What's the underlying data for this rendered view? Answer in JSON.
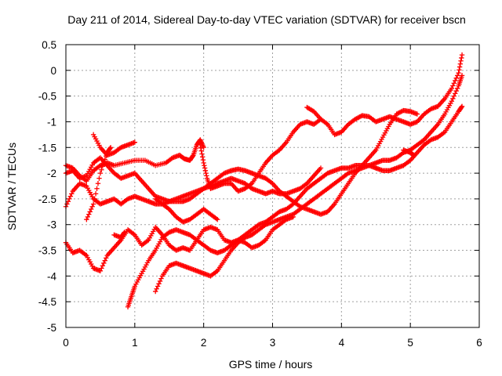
{
  "chart_data": {
    "type": "scatter",
    "title": "Day 211 of 2014, Sidereal Day-to-day VTEC variation (SDTVAR) for receiver bscn",
    "xlabel": "GPS time / hours",
    "ylabel": "SDTVAR / TECUs",
    "xlim": [
      0,
      6
    ],
    "ylim": [
      -5,
      0.5
    ],
    "xticks": [
      0,
      1,
      2,
      3,
      4,
      5,
      6
    ],
    "yticks": [
      -5,
      -4.5,
      -4,
      -3.5,
      -3,
      -2.5,
      -2,
      -1.5,
      -1,
      -0.5,
      0,
      0.5
    ],
    "grid": true,
    "marker": "+",
    "color": "#ff0000",
    "series": [
      {
        "x": [
          0.0,
          0.1,
          0.2,
          0.3,
          0.4,
          0.5,
          0.6,
          0.7,
          0.85,
          1.0,
          1.15,
          1.3,
          1.45,
          1.55,
          1.65,
          1.72,
          1.8,
          1.85,
          1.9,
          1.95,
          2.0
        ],
        "y": [
          -1.85,
          -1.9,
          -2.05,
          -2.15,
          -1.95,
          -1.85,
          -1.8,
          -1.85,
          -1.8,
          -1.75,
          -1.75,
          -1.85,
          -1.8,
          -1.7,
          -1.65,
          -1.72,
          -1.75,
          -1.65,
          -1.45,
          -1.35,
          -1.5
        ]
      },
      {
        "x": [
          1.95,
          2.0,
          2.05,
          2.1,
          2.2,
          2.3,
          2.4,
          2.5,
          2.6,
          2.7,
          2.8,
          2.9,
          3.0,
          3.1,
          3.2,
          3.3,
          3.4,
          3.5,
          3.6,
          3.7
        ],
        "y": [
          -1.45,
          -1.8,
          -2.1,
          -2.3,
          -2.25,
          -2.2,
          -2.2,
          -2.35,
          -2.3,
          -2.2,
          -2.0,
          -1.8,
          -1.65,
          -1.55,
          -1.4,
          -1.2,
          -1.05,
          -1.0,
          -1.05,
          -0.95
        ]
      },
      {
        "x": [
          3.5,
          3.6,
          3.7,
          3.8,
          3.9,
          4.0,
          4.1,
          4.2,
          4.3,
          4.4,
          4.5,
          4.6,
          4.7,
          4.8,
          4.9,
          5.0,
          5.1,
          5.2,
          5.3,
          5.4,
          5.5,
          5.6,
          5.7,
          5.75
        ],
        "y": [
          -0.72,
          -0.8,
          -0.95,
          -1.05,
          -1.25,
          -1.2,
          -1.05,
          -0.95,
          -0.88,
          -0.9,
          -1.0,
          -0.95,
          -0.9,
          -0.95,
          -1.0,
          -1.05,
          -1.0,
          -0.85,
          -0.75,
          -0.7,
          -0.55,
          -0.35,
          -0.05,
          0.3
        ]
      },
      {
        "x": [
          0.0,
          0.1,
          0.2,
          0.3,
          0.4,
          0.5,
          0.6,
          0.7,
          0.8,
          0.9,
          1.0,
          1.1,
          1.2,
          1.3,
          1.4,
          1.5,
          1.6,
          1.7,
          1.8,
          1.9,
          2.0,
          2.1,
          2.2,
          2.3,
          2.4,
          2.5,
          2.6,
          2.7
        ],
        "y": [
          -2.0,
          -1.95,
          -2.1,
          -2.05,
          -1.8,
          -1.7,
          -1.85,
          -2.0,
          -2.1,
          -2.05,
          -2.0,
          -2.15,
          -2.3,
          -2.45,
          -2.5,
          -2.55,
          -2.5,
          -2.45,
          -2.4,
          -2.35,
          -2.3,
          -2.2,
          -2.1,
          -2.0,
          -1.95,
          -1.92,
          -1.95,
          -2.0
        ]
      },
      {
        "x": [
          2.7,
          2.8,
          2.9,
          3.0,
          3.1,
          3.2,
          3.3,
          3.4,
          3.5,
          3.6,
          3.7,
          3.8,
          3.9,
          4.0,
          4.1,
          4.2,
          4.3,
          4.4,
          4.5,
          4.6,
          4.7,
          4.8,
          4.9,
          5.0,
          5.1
        ],
        "y": [
          -2.0,
          -2.05,
          -2.1,
          -2.2,
          -2.35,
          -2.45,
          -2.55,
          -2.65,
          -2.7,
          -2.75,
          -2.8,
          -2.75,
          -2.6,
          -2.4,
          -2.2,
          -2.0,
          -1.85,
          -1.7,
          -1.55,
          -1.3,
          -1.05,
          -0.85,
          -0.78,
          -0.8,
          -0.85
        ]
      },
      {
        "x": [
          0.0,
          0.1,
          0.2,
          0.3,
          0.4,
          0.5,
          0.6,
          0.7,
          0.8,
          0.9,
          1.0,
          1.1,
          1.2,
          1.3,
          1.4,
          1.5,
          1.6,
          1.7,
          1.8,
          1.9,
          2.0,
          2.1,
          2.2,
          2.3,
          2.4,
          2.5,
          2.6,
          2.7,
          2.8,
          2.9,
          3.0
        ],
        "y": [
          -2.65,
          -2.35,
          -2.2,
          -2.25,
          -2.5,
          -2.6,
          -2.55,
          -2.5,
          -2.6,
          -2.5,
          -2.45,
          -2.5,
          -2.55,
          -2.6,
          -2.6,
          -2.55,
          -2.55,
          -2.55,
          -2.5,
          -2.4,
          -2.3,
          -2.25,
          -2.2,
          -2.15,
          -2.1,
          -2.15,
          -2.2,
          -2.3,
          -2.35,
          -2.4,
          -2.35
        ]
      },
      {
        "x": [
          3.0,
          3.1,
          3.2,
          3.3,
          3.4,
          3.5,
          3.6,
          3.7
        ],
        "y": [
          -2.35,
          -2.4,
          -2.4,
          -2.35,
          -2.3,
          -2.2,
          -2.05,
          -1.9
        ]
      },
      {
        "x": [
          0.0,
          0.1,
          0.2,
          0.3,
          0.4,
          0.5,
          0.6,
          0.7,
          0.8,
          0.9,
          1.0,
          1.1,
          1.2,
          1.3,
          1.4,
          1.5,
          1.6,
          1.7,
          1.8,
          1.9,
          2.0,
          2.1,
          2.2,
          2.3,
          2.4,
          2.5,
          2.6,
          2.7,
          2.8,
          2.9,
          3.0,
          3.1,
          3.2,
          3.3
        ],
        "y": [
          -3.35,
          -3.55,
          -3.5,
          -3.6,
          -3.85,
          -3.9,
          -3.6,
          -3.45,
          -3.3,
          -3.1,
          -3.2,
          -3.4,
          -3.3,
          -3.05,
          -3.2,
          -3.4,
          -3.5,
          -3.45,
          -3.5,
          -3.3,
          -3.1,
          -3.05,
          -3.1,
          -3.3,
          -3.35,
          -3.3,
          -3.35,
          -3.45,
          -3.4,
          -3.3,
          -3.1,
          -3.0,
          -2.9,
          -2.85
        ]
      },
      {
        "x": [
          0.9,
          0.95,
          1.0,
          1.1,
          1.2,
          1.3,
          1.4,
          1.5,
          1.6,
          1.7,
          1.8,
          1.9,
          2.0,
          2.1,
          2.2,
          2.3,
          2.4,
          2.5,
          2.6,
          2.7,
          2.8,
          2.9,
          3.0,
          3.1,
          3.2,
          3.3,
          3.4,
          3.5,
          3.6,
          3.7,
          3.8,
          3.9,
          4.0,
          4.1,
          4.2,
          4.3,
          4.4,
          4.5
        ],
        "y": [
          -4.6,
          -4.4,
          -4.2,
          -3.95,
          -3.7,
          -3.5,
          -3.25,
          -3.15,
          -3.1,
          -3.15,
          -3.2,
          -3.3,
          -3.4,
          -3.5,
          -3.55,
          -3.5,
          -3.4,
          -3.3,
          -3.2,
          -3.1,
          -3.0,
          -2.95,
          -2.85,
          -2.75,
          -2.7,
          -2.6,
          -2.45,
          -2.3,
          -2.2,
          -2.1,
          -2.0,
          -1.95,
          -1.9,
          -1.9,
          -1.85,
          -1.85,
          -1.85,
          -1.9
        ]
      },
      {
        "x": [
          4.5,
          4.6,
          4.7,
          4.8,
          4.9,
          5.0,
          5.1,
          5.2,
          5.3,
          5.4,
          5.5,
          5.6,
          5.7,
          5.75
        ],
        "y": [
          -1.9,
          -1.95,
          -1.95,
          -1.9,
          -1.85,
          -1.75,
          -1.6,
          -1.45,
          -1.35,
          -1.3,
          -1.2,
          -1.0,
          -0.8,
          -0.7
        ]
      },
      {
        "x": [
          1.3,
          1.4,
          1.5,
          1.6,
          1.7,
          1.8,
          1.9,
          2.0,
          2.1,
          2.2,
          2.3,
          2.4,
          2.5,
          2.6,
          2.7,
          2.8,
          2.9,
          3.0,
          3.1,
          3.2,
          3.3,
          3.4,
          3.5,
          3.6,
          3.7,
          3.8,
          3.9,
          4.0,
          4.1,
          4.2,
          4.3,
          4.4,
          4.5,
          4.6,
          4.7,
          4.8,
          4.9,
          5.0,
          5.1,
          5.2,
          5.3,
          5.4,
          5.5,
          5.6,
          5.7,
          5.75
        ],
        "y": [
          -4.3,
          -4.0,
          -3.8,
          -3.75,
          -3.8,
          -3.85,
          -3.9,
          -3.95,
          -4.0,
          -3.9,
          -3.7,
          -3.5,
          -3.35,
          -3.25,
          -3.2,
          -3.1,
          -3.0,
          -2.95,
          -2.9,
          -2.85,
          -2.8,
          -2.7,
          -2.6,
          -2.5,
          -2.4,
          -2.3,
          -2.2,
          -2.1,
          -2.0,
          -1.95,
          -1.9,
          -1.85,
          -1.8,
          -1.75,
          -1.75,
          -1.7,
          -1.6,
          -1.55,
          -1.45,
          -1.35,
          -1.2,
          -1.05,
          -0.85,
          -0.6,
          -0.3,
          -0.1
        ]
      },
      {
        "x": [
          0.4,
          0.5,
          0.6,
          0.7,
          0.8,
          0.9,
          1.0
        ],
        "y": [
          -1.25,
          -1.5,
          -1.65,
          -1.6,
          -1.5,
          -1.45,
          -1.4
        ]
      },
      {
        "x": [
          0.3,
          0.4,
          0.5,
          0.6,
          0.65
        ],
        "y": [
          -2.9,
          -2.6,
          -2.0,
          -1.6,
          -1.5
        ]
      },
      {
        "x": [
          1.3,
          1.4,
          1.5,
          1.6,
          1.7,
          1.8,
          1.9,
          2.0,
          2.1,
          2.2
        ],
        "y": [
          -2.5,
          -2.6,
          -2.7,
          -2.85,
          -2.95,
          -2.9,
          -2.8,
          -2.7,
          -2.8,
          -2.9
        ]
      },
      {
        "x": [
          4.9,
          5.0,
          5.05
        ],
        "y": [
          -1.55,
          -1.6,
          -1.65
        ]
      },
      {
        "x": [
          0.7,
          0.8,
          0.85
        ],
        "y": [
          -3.2,
          -3.25,
          -3.15
        ]
      }
    ]
  }
}
